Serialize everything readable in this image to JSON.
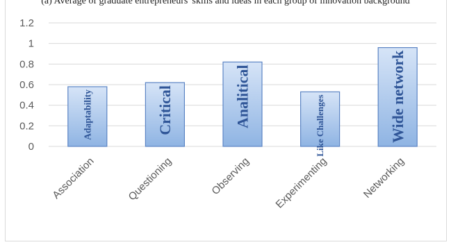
{
  "caption": "(a) Average of graduate entrepreneurs' skills and ideas in each group of innovation background",
  "colors": {
    "bar_top": "#d6e4f7",
    "bar_bottom": "#8fb4e3",
    "bar_edge": "#5b84c4",
    "inbar_text": "#2f5597",
    "grid": "#d9d9d9"
  },
  "chart_data": {
    "type": "bar",
    "categories": [
      "Association",
      "Questioning",
      "Observing",
      "Experimenting",
      "Networking"
    ],
    "values": [
      0.58,
      0.62,
      0.82,
      0.53,
      0.96
    ],
    "bar_labels": [
      "Adaptability",
      "Critical",
      "Analitical",
      "Like Challenges",
      "Wide network"
    ],
    "yticks": [
      "0",
      "0.2",
      "0.4",
      "0.6",
      "0.8",
      "1",
      "1.2"
    ],
    "ylim": [
      0,
      1.2
    ],
    "grid": true,
    "legend": "none"
  }
}
